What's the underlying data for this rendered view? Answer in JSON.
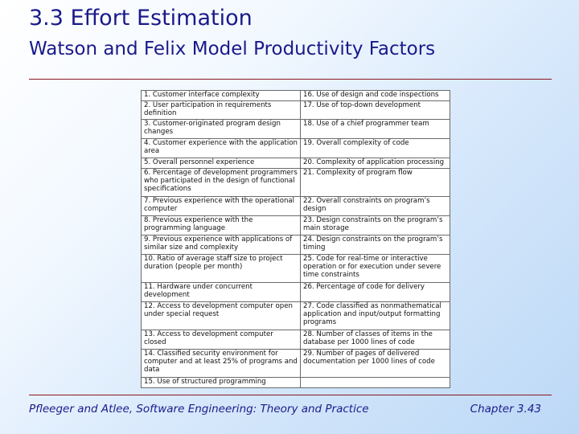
{
  "slide": {
    "title": "3.3 Effort Estimation",
    "subtitle": "Watson and Felix Model Productivity Factors"
  },
  "table": {
    "rows": [
      {
        "left": "1.  Customer interface complexity",
        "right": "16.  Use of design and code inspections"
      },
      {
        "left": "2.  User participation in requirements definition",
        "right": "17.  Use of top-down development"
      },
      {
        "left": "3.  Customer-originated program design changes",
        "right": "18.  Use of a chief programmer team"
      },
      {
        "left": "4.  Customer experience with the application area",
        "right": "19.  Overall complexity of code"
      },
      {
        "left": "5.  Overall personnel experience",
        "right": "20.  Complexity of application processing"
      },
      {
        "left": "6.  Percentage of development programmers who participated in the design of functional specifications",
        "right": "21.  Complexity of program flow"
      },
      {
        "left": "7.  Previous experience with the operational computer",
        "right": "22.  Overall constraints on program’s design"
      },
      {
        "left": "8.  Previous experience with the programming language",
        "right": "23.  Design constraints on the program’s main storage"
      },
      {
        "left": "9.  Previous experience with applications of similar size and complexity",
        "right": "24.  Design constraints on the program’s timing"
      },
      {
        "left": "10.  Ratio of average staff size to project duration (people per month)",
        "right": "25.  Code for real-time or interactive operation or for execution under severe time constraints"
      },
      {
        "left": "11.  Hardware under concurrent development",
        "right": "26.  Percentage of code for delivery"
      },
      {
        "left": "12.  Access to development computer open under special request",
        "right": "27.  Code classified as nonmathematical application and input/output formatting programs"
      },
      {
        "left": "13.  Access to development computer closed",
        "right": "28.  Number of classes of items in the database per 1000 lines of code"
      },
      {
        "left": "14.  Classified security environment for computer and at least 25% of programs and data",
        "right": "29.  Number of pages of delivered documentation per 1000 lines of code"
      },
      {
        "left": "15.  Use of structured programming",
        "right": ""
      }
    ]
  },
  "footer": {
    "citation": "Pfleeger and Atlee, Software Engineering: Theory and Practice",
    "chapter": "Chapter 3.43"
  }
}
